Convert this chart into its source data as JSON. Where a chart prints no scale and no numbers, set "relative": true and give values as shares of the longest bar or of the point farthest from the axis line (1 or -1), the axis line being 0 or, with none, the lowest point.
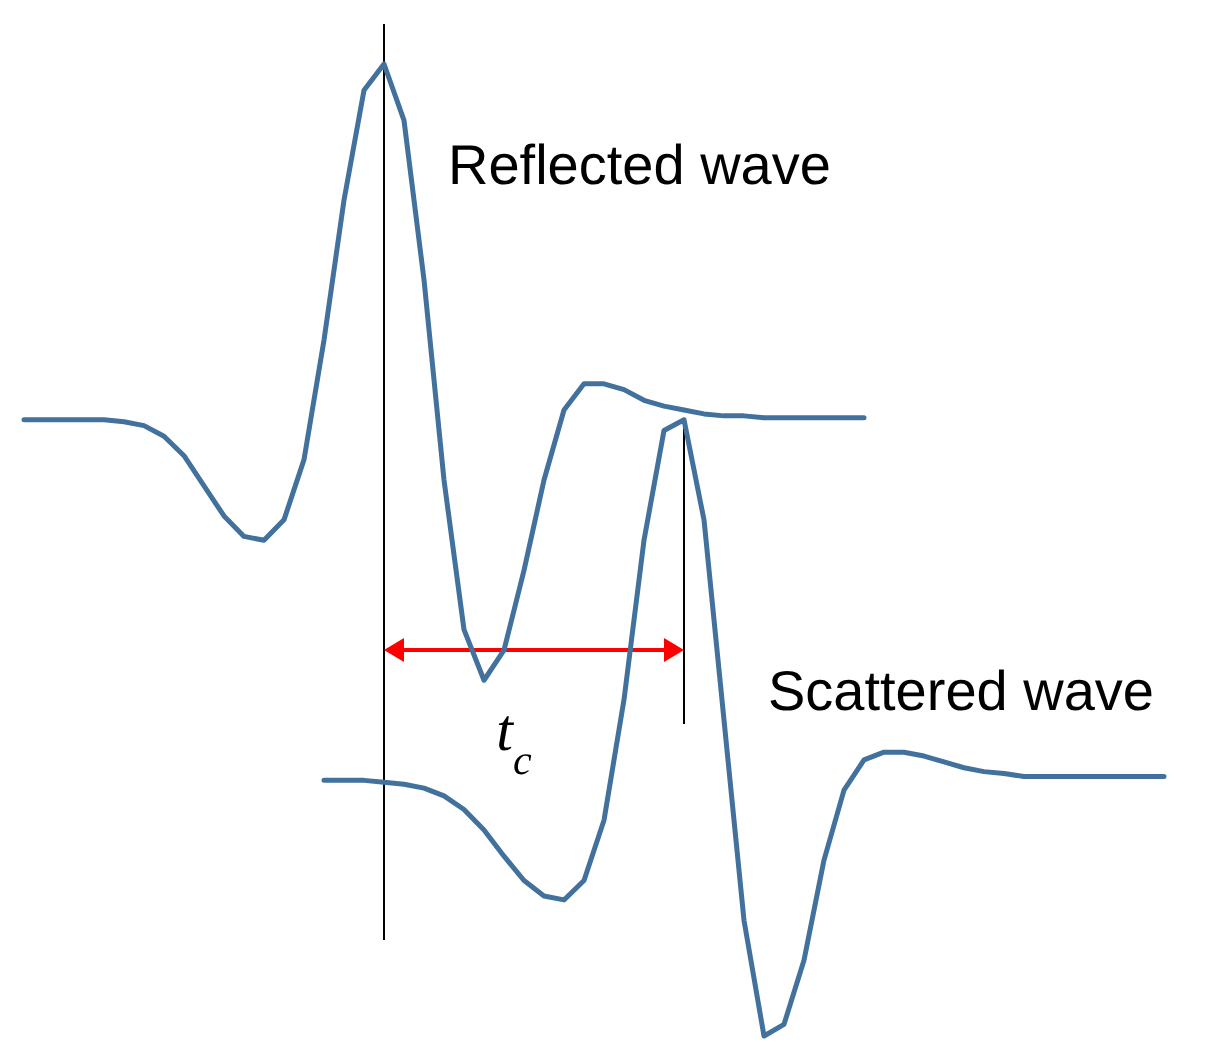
{
  "chart_data": {
    "type": "line",
    "relative": true,
    "categories": [
      null,
      null,
      null,
      null,
      null,
      null,
      null,
      null,
      null,
      null,
      null,
      null,
      null,
      null,
      null,
      null,
      null,
      null,
      null,
      null,
      null,
      null,
      null,
      null,
      null,
      null,
      null,
      null,
      null,
      null,
      null,
      null,
      null,
      null,
      null,
      null,
      null,
      null,
      null,
      null,
      null,
      null,
      null,
      null,
      null,
      null,
      null,
      null,
      null,
      null,
      null,
      null,
      null,
      null,
      null,
      null,
      null,
      null
    ],
    "series": [
      {
        "name": "Reflected wave",
        "color": "#41719c",
        "values": [
          0.634,
          0.634,
          0.634,
          0.634,
          0.634,
          0.632,
          0.628,
          0.617,
          0.597,
          0.566,
          0.535,
          0.514,
          0.51,
          0.531,
          0.593,
          0.716,
          0.86,
          0.973,
          1,
          0.942,
          0.778,
          0.572,
          0.418,
          0.366,
          0.397,
          0.479,
          0.572,
          0.644,
          0.671,
          0.671,
          0.665,
          0.654,
          0.648,
          0.644,
          0.64,
          0.638,
          0.638,
          0.636,
          0.636,
          0.636,
          0.636,
          0.636,
          0.636,
          null,
          null,
          null,
          null,
          null,
          null,
          null,
          null,
          null,
          null,
          null,
          null,
          null,
          null,
          null
        ]
      },
      {
        "name": "Scattered wave",
        "color": "#41719c",
        "values": [
          null,
          null,
          null,
          null,
          null,
          null,
          null,
          null,
          null,
          null,
          null,
          null,
          null,
          null,
          null,
          0.263,
          0.263,
          0.263,
          0.261,
          0.259,
          0.255,
          0.247,
          0.233,
          0.212,
          0.185,
          0.16,
          0.144,
          0.14,
          0.16,
          0.222,
          0.346,
          0.51,
          0.623,
          0.634,
          0.531,
          0.325,
          0.119,
          0,
          0.012,
          0.078,
          0.181,
          0.253,
          0.284,
          0.292,
          0.292,
          0.288,
          0.282,
          0.276,
          0.272,
          0.27,
          0.267,
          0.267,
          0.267,
          0.267,
          0.267,
          0.267,
          0.267,
          0.267
        ]
      }
    ],
    "annotations": [
      "t$_{c}$"
    ]
  }
}
